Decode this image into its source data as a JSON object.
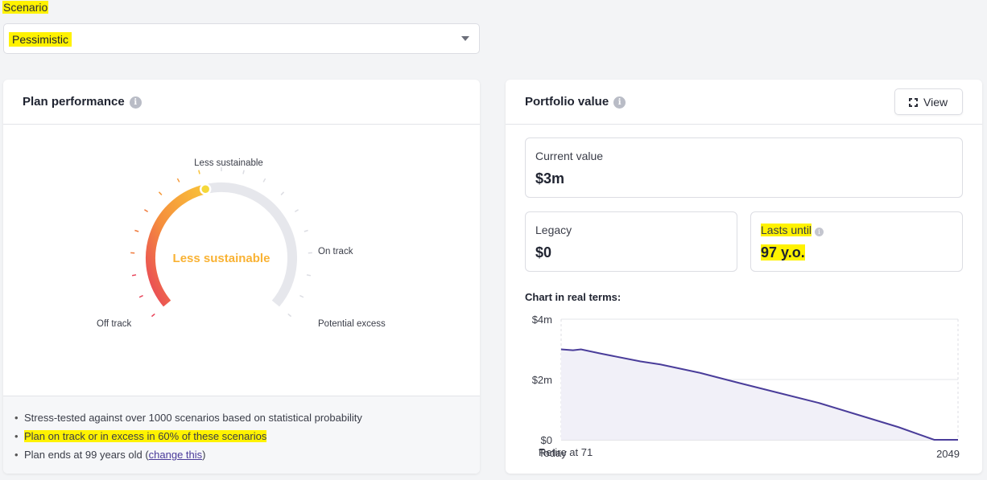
{
  "scenario": {
    "label": "Scenario",
    "selected": "Pessimistic"
  },
  "plan_performance": {
    "title": "Plan performance",
    "info": "i",
    "gauge": {
      "center_label": "Less sustainable",
      "labels": {
        "top": "Less sustainable",
        "right": "On track",
        "bottom_left": "Off track",
        "bottom_right": "Potential excess"
      },
      "level_fraction": 0.45
    },
    "bullets": {
      "b1": "Stress-tested against over 1000 scenarios based on statistical probability",
      "b2": "Plan on track or in excess in 60% of these scenarios",
      "b3_prefix": "Plan ends at 99 years old (",
      "b3_link": "change this",
      "b3_suffix": ")"
    }
  },
  "portfolio_value": {
    "title": "Portfolio value",
    "info": "i",
    "view_button": "View",
    "current": {
      "label": "Current value",
      "value": "$3m"
    },
    "legacy": {
      "label": "Legacy",
      "value": "$0"
    },
    "lasts_until": {
      "label": "Lasts until",
      "value": "97 y.o."
    },
    "chart_title": "Chart in real terms:"
  },
  "colors": {
    "accent": "#f9b233",
    "line": "#4a3d9a",
    "fill": "#f1f0f8",
    "red": "#e8445a"
  },
  "chart_data": {
    "type": "area",
    "yticks": [
      "$4m",
      "$2m",
      "$0"
    ],
    "ylim": [
      0,
      4
    ],
    "x_start_label": "Today",
    "x_overlap_label": "Retire at 71",
    "x_end_label": "2049",
    "x": [
      0,
      0.03,
      0.05,
      0.1,
      0.2,
      0.25,
      0.35,
      0.45,
      0.55,
      0.65,
      0.75,
      0.85,
      0.94,
      1.0
    ],
    "values": [
      3.0,
      2.97,
      3.0,
      2.86,
      2.6,
      2.5,
      2.22,
      1.88,
      1.55,
      1.22,
      0.82,
      0.42,
      0.0,
      0.0
    ]
  }
}
